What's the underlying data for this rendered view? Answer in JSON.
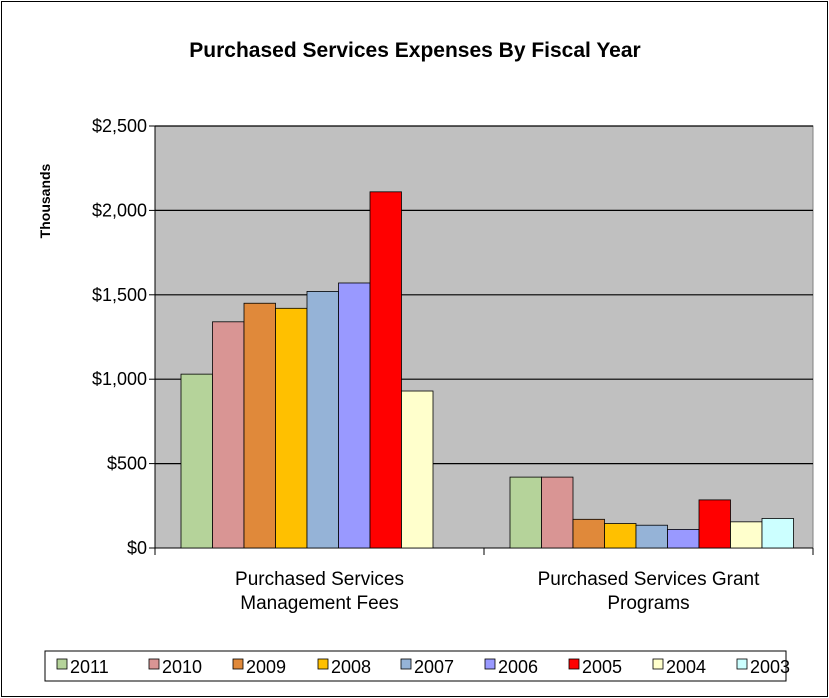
{
  "chart_data": {
    "type": "bar",
    "title": "Purchased Services Expenses By Fiscal Year",
    "ylabel": "Thousands",
    "xlabel": "",
    "ylim": [
      0,
      2500
    ],
    "yticks": [
      "$0",
      "$500",
      "$1,000",
      "$1,500",
      "$2,000",
      "$2,500"
    ],
    "ytick_values": [
      0,
      500,
      1000,
      1500,
      2000,
      2500
    ],
    "grid": true,
    "legend_position": "bottom",
    "plot_background": "#C0C0C0",
    "categories": [
      [
        "Purchased Services",
        "Management Fees"
      ],
      [
        "Purchased Services Grant",
        "Programs"
      ]
    ],
    "series": [
      {
        "name": "2011",
        "color": "#B5D39A",
        "values": [
          1030,
          420
        ]
      },
      {
        "name": "2010",
        "color": "#D99594",
        "values": [
          1340,
          420
        ]
      },
      {
        "name": "2009",
        "color": "#E0893A",
        "values": [
          1450,
          170
        ]
      },
      {
        "name": "2008",
        "color": "#FFC000",
        "values": [
          1420,
          145
        ]
      },
      {
        "name": "2007",
        "color": "#95B3D7",
        "values": [
          1520,
          135
        ]
      },
      {
        "name": "2006",
        "color": "#9999FF",
        "values": [
          1570,
          110
        ]
      },
      {
        "name": "2005",
        "color": "#FF0000",
        "values": [
          2110,
          285
        ]
      },
      {
        "name": "2004",
        "color": "#FFFFCC",
        "values": [
          930,
          155
        ]
      },
      {
        "name": "2003",
        "color": "#CCFFFF",
        "values": [
          null,
          175
        ]
      }
    ]
  }
}
